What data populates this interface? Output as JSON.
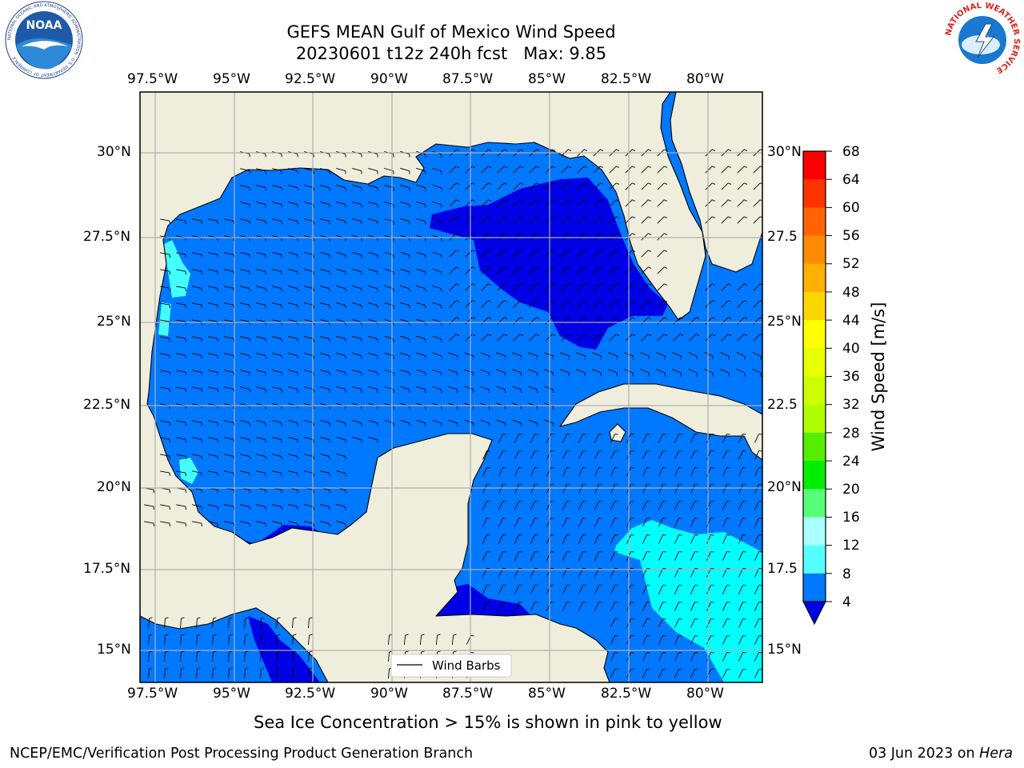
{
  "header": {
    "title_line1": "GEFS MEAN Gulf of Mexico Wind Speed",
    "title_line2": "20230601 t12z 240h fcst   Max: 9.85",
    "left_logo_text": "NOAA",
    "left_logo_ring_text": "NATIONAL OCEANIC AND ATMOSPHERIC ADMINISTRATION · U.S. DEPARTMENT OF COMMERCE",
    "right_logo_ring_text": "NATIONAL WEATHER SERVICE"
  },
  "map": {
    "lon_labels": [
      "97.5°W",
      "95°W",
      "92.5°W",
      "90°W",
      "87.5°W",
      "85°W",
      "82.5°W",
      "80°W"
    ],
    "lat_labels": [
      "30°N",
      "27.5°N",
      "25°N",
      "22.5°N",
      "20°N",
      "17.5°N",
      "15°N"
    ],
    "right_lat_labels": [
      "30°N",
      "27.5",
      "25°N",
      "22.5",
      "20°N",
      "17.5",
      "15°N"
    ],
    "legend_label": "Wind Barbs",
    "colors": {
      "land": "#efeddc",
      "level_4_8": "#0078ff",
      "level_lt_4": "#0000e6",
      "level_8_12": "#00ffff",
      "level_12_16": "#44ffff",
      "grid": "#b0b0b0"
    }
  },
  "colorbar": {
    "label": "Wind Speed [m/s]",
    "ticks": [
      "68",
      "64",
      "60",
      "56",
      "52",
      "48",
      "44",
      "40",
      "36",
      "32",
      "28",
      "24",
      "20",
      "16",
      "12",
      "8",
      "4"
    ],
    "colors": [
      "#ff0000",
      "#ff3300",
      "#ff6400",
      "#ff8c00",
      "#ffb000",
      "#ffd700",
      "#ffff00",
      "#e8ff00",
      "#cdff00",
      "#b0ff00",
      "#55ee00",
      "#00ee00",
      "#55ff77",
      "#aaffff",
      "#55ffff",
      "#00ffff",
      "#0078ff"
    ],
    "under_color": "#0000e6"
  },
  "footer": {
    "note": "Sea Ice Concentration > 15% is shown in pink to yellow",
    "left": "NCEP/EMC/Verification Post Processing Product Generation Branch",
    "right_date": "03 Jun 2023 on ",
    "right_host": "Hera"
  }
}
